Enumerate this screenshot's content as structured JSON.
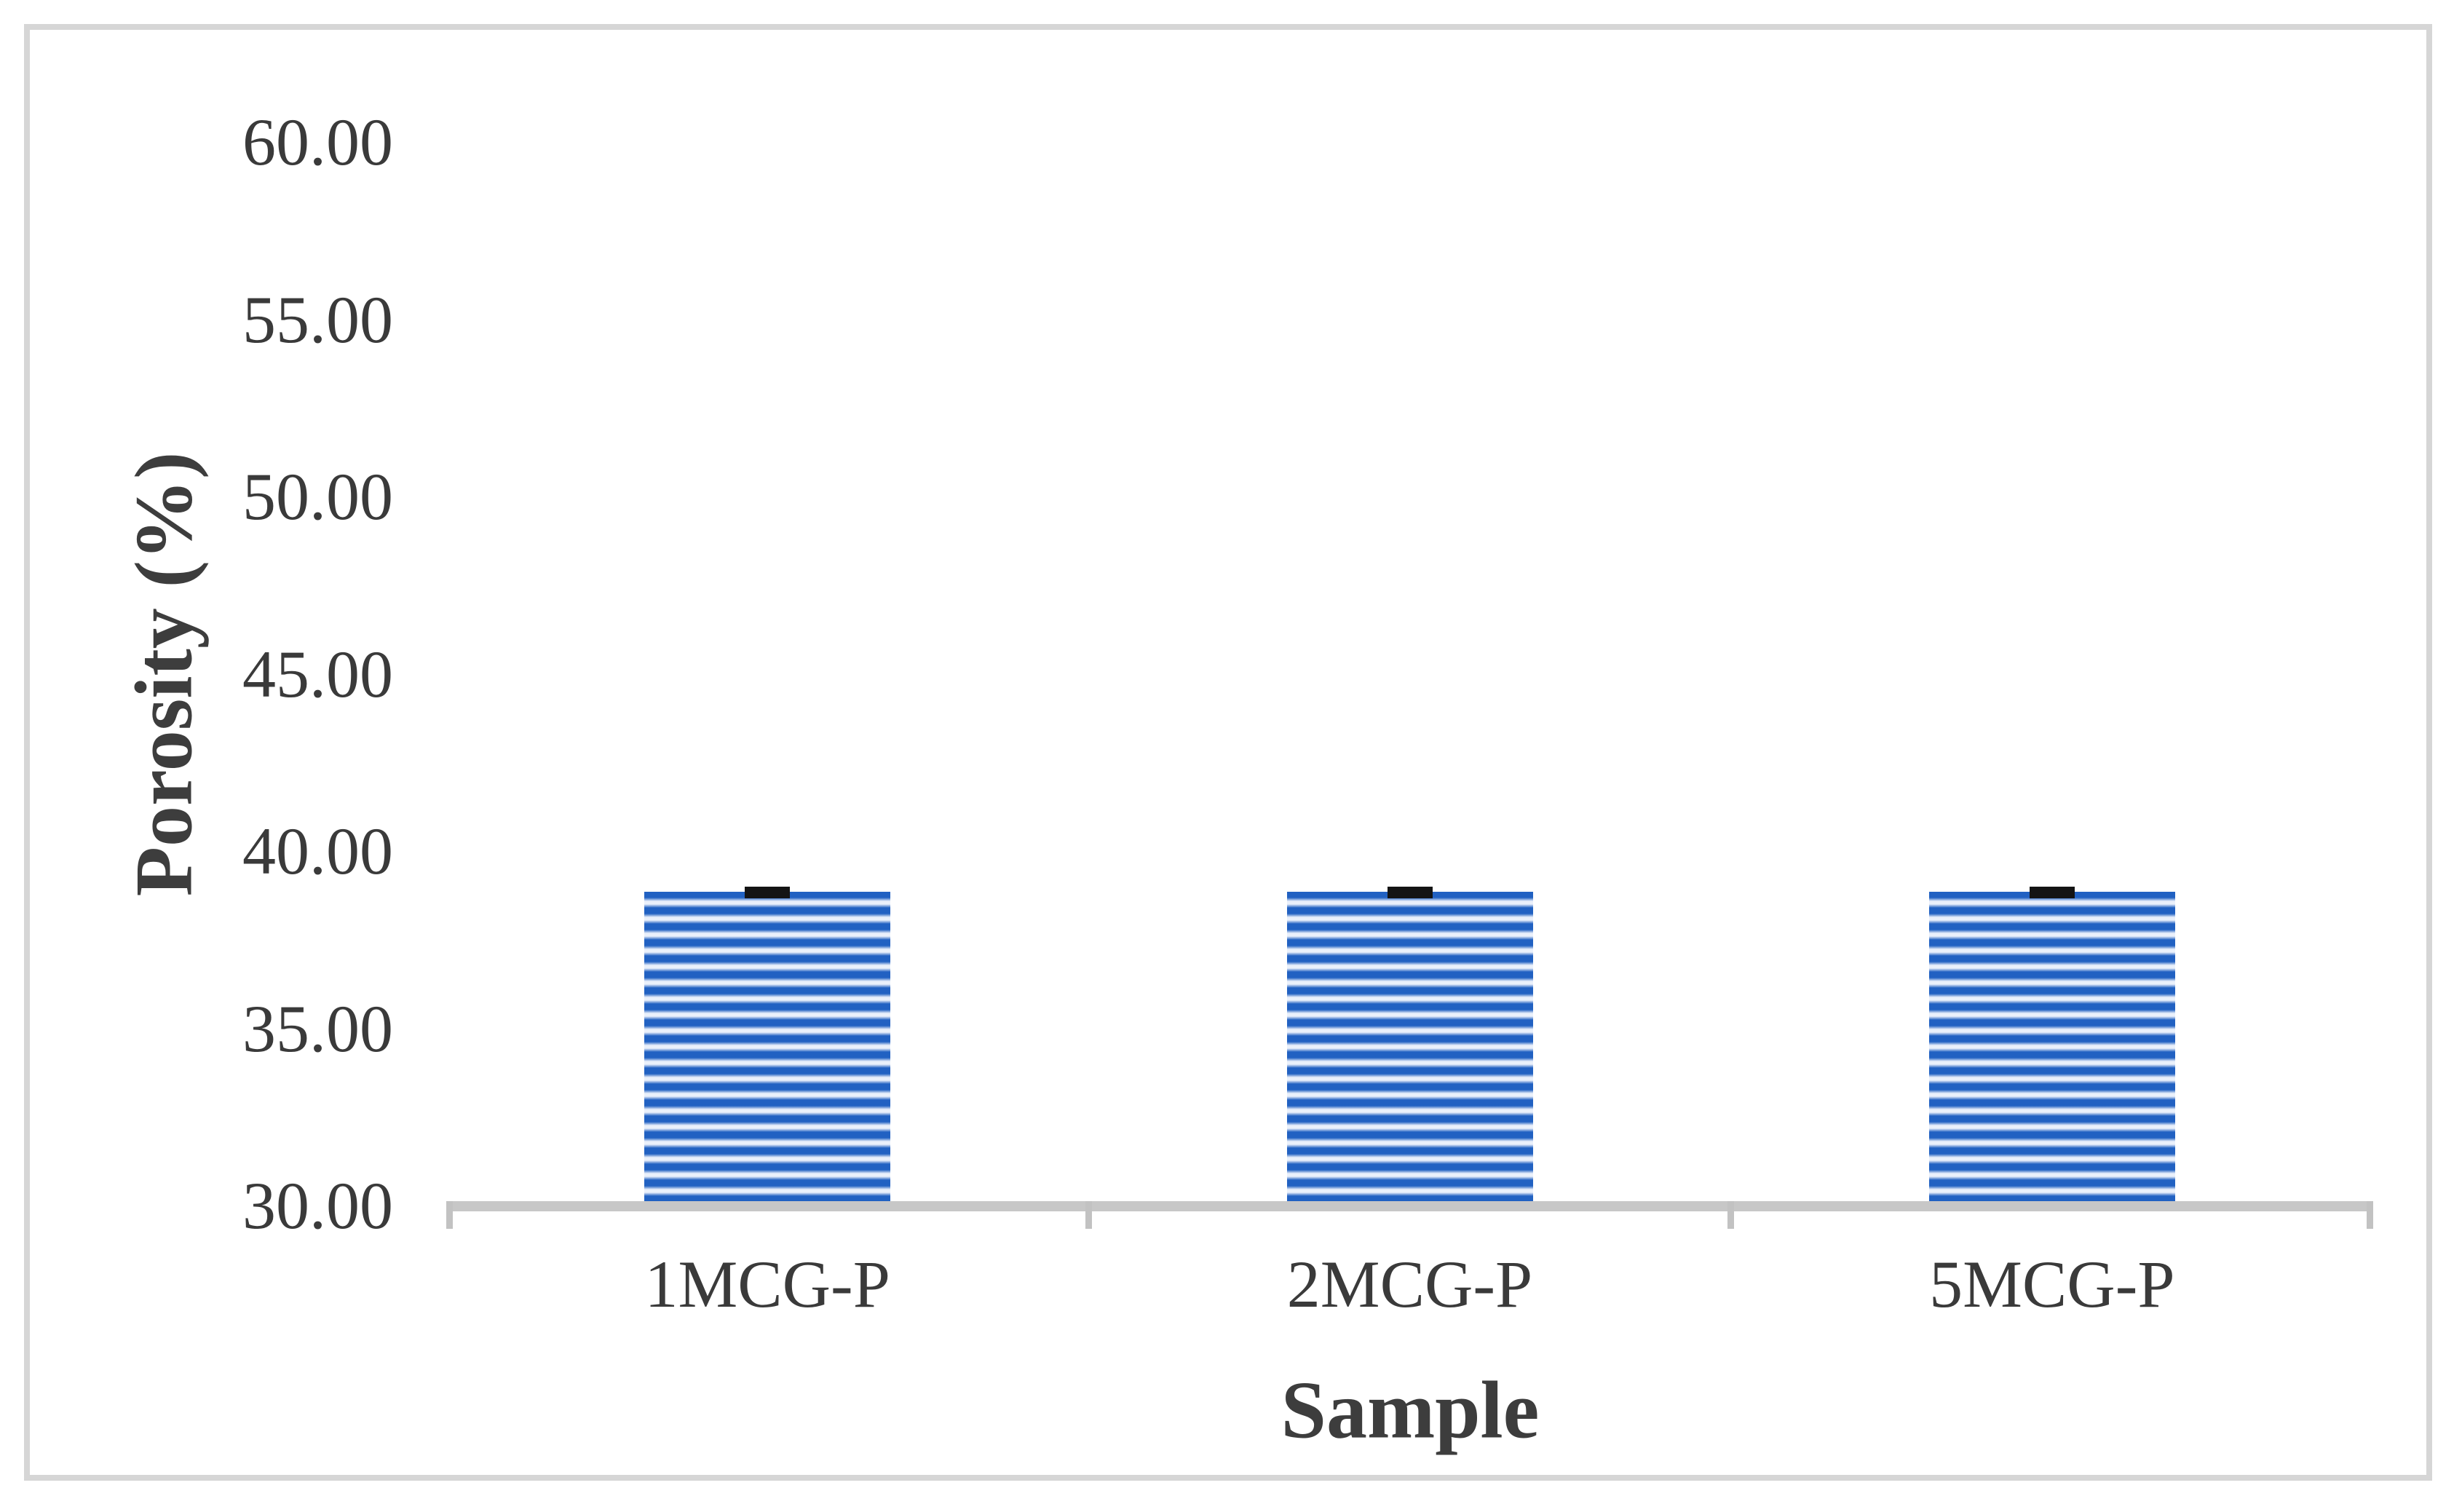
{
  "chart_data": {
    "type": "bar",
    "title": "",
    "categories": [
      "1MCG-P",
      "2MCG-P",
      "5MCG-P"
    ],
    "values": [
      38.85,
      38.85,
      38.85
    ],
    "error_bars": [
      0.15,
      0.15,
      0.15
    ],
    "xlabel": "Sample",
    "ylabel": "Porosity (%)",
    "ylim": [
      30,
      60
    ],
    "ytick_step": 5,
    "ytick_labels": [
      "60.00",
      "55.00",
      "50.00",
      "45.00",
      "40.00",
      "35.00",
      "30.00"
    ],
    "ytick_values": [
      60,
      55,
      50,
      45,
      40,
      35,
      30
    ],
    "grid": "off",
    "legend": "none",
    "bar_fill_pattern": "horizontal-stripes",
    "colors": {
      "bar_stripe_blue": "#2161C2",
      "bar_stripe_light": "#EAF0FB",
      "axis_line": "#C7C7C7",
      "text": "#3A3A3A",
      "axis_title_text": "#3D3D3D",
      "error_bar": "#141414",
      "frame_border": "#D6D6D6",
      "background": "#FFFFFF"
    }
  }
}
